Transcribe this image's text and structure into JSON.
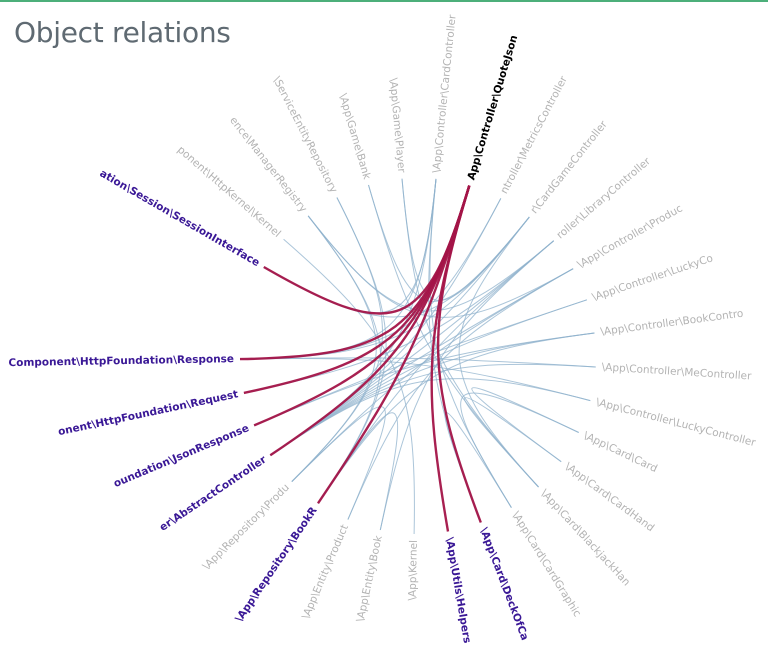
{
  "page": {
    "title": "Object relations"
  },
  "colors": {
    "muted": "#b3b3b3",
    "highlight": "#3a1896",
    "focus": "#000000",
    "link_muted": "#8fb1cc",
    "link_highlight": "#a31448",
    "frame_accent": "#4caf7a"
  },
  "focus_node": "\\App\\Controller\\QuoteJson",
  "nodes": [
    {
      "id": "session-interface",
      "label": "ation\\Session\\SessionInterface",
      "state": "highlight"
    },
    {
      "id": "http-kernel",
      "label": "ponent\\HttpKernel\\Kernel",
      "state": "muted"
    },
    {
      "id": "manager-registry",
      "label": "ence\\ManagerRegistry",
      "state": "muted"
    },
    {
      "id": "service-entity-repository",
      "label": "\\ServiceEntityRepository",
      "state": "muted"
    },
    {
      "id": "game-bank",
      "label": "\\App\\Game\\Bank",
      "state": "muted"
    },
    {
      "id": "game-player",
      "label": "\\App\\Game\\Player",
      "state": "muted"
    },
    {
      "id": "card-controller",
      "label": "\\App\\Controller\\CardController",
      "state": "muted"
    },
    {
      "id": "quote-json",
      "label": "App\\Controller\\QuoteJson",
      "state": "focus"
    },
    {
      "id": "metrics-controller",
      "label": "ntroller\\MetricsController",
      "state": "muted"
    },
    {
      "id": "card-game-controller",
      "label": "r\\CardGameController",
      "state": "muted"
    },
    {
      "id": "library-controller",
      "label": "roller\\LibraryController",
      "state": "muted"
    },
    {
      "id": "product-controller",
      "label": "\\App\\Controller\\Produc",
      "state": "muted"
    },
    {
      "id": "lucky-co",
      "label": "\\App\\Controller\\LuckyCo",
      "state": "muted"
    },
    {
      "id": "book-controller",
      "label": "\\App\\Controller\\BookContro",
      "state": "muted"
    },
    {
      "id": "me-controller",
      "label": "\\App\\Controller\\MeController",
      "state": "muted"
    },
    {
      "id": "lucky-controller",
      "label": "\\App\\Controller\\LuckyController",
      "state": "muted"
    },
    {
      "id": "card-card",
      "label": "\\App\\Card\\Card",
      "state": "muted"
    },
    {
      "id": "card-hand",
      "label": "\\App\\Card\\CardHand",
      "state": "muted"
    },
    {
      "id": "blackjack-hand",
      "label": "\\App\\Card\\BlackjackHan",
      "state": "muted"
    },
    {
      "id": "card-graphic",
      "label": "\\App\\Card\\CardGraphic",
      "state": "muted"
    },
    {
      "id": "deck-of-cards",
      "label": "\\App\\Card\\DeckOfCa",
      "state": "highlight"
    },
    {
      "id": "utils-helpers",
      "label": "\\App\\Utils\\Helpers",
      "state": "highlight"
    },
    {
      "id": "kernel",
      "label": "\\App\\Kernel",
      "state": "muted"
    },
    {
      "id": "entity-book",
      "label": "\\App\\Entity\\Book",
      "state": "muted"
    },
    {
      "id": "entity-product",
      "label": "\\App\\Entity\\Product",
      "state": "muted"
    },
    {
      "id": "repo-book",
      "label": "\\App\\Repository\\BookR",
      "state": "highlight"
    },
    {
      "id": "repo-product",
      "label": "\\App\\Repository\\Produ",
      "state": "muted"
    },
    {
      "id": "abstract-controller",
      "label": "er\\AbstractController",
      "state": "highlight"
    },
    {
      "id": "json-response",
      "label": "oundation\\JsonResponse",
      "state": "highlight"
    },
    {
      "id": "http-request",
      "label": "onent\\HttpFoundation\\Request",
      "state": "highlight"
    },
    {
      "id": "http-response",
      "label": "Component\\HttpFoundation\\Response",
      "state": "highlight"
    }
  ],
  "links": [
    {
      "source": "quote-json",
      "target": "session-interface",
      "weight": 2
    },
    {
      "source": "quote-json",
      "target": "http-response",
      "weight": 2
    },
    {
      "source": "quote-json",
      "target": "http-request",
      "weight": 2
    },
    {
      "source": "quote-json",
      "target": "json-response",
      "weight": 2
    },
    {
      "source": "quote-json",
      "target": "abstract-controller",
      "weight": 2
    },
    {
      "source": "quote-json",
      "target": "repo-book",
      "weight": 2
    },
    {
      "source": "quote-json",
      "target": "utils-helpers",
      "weight": 2
    },
    {
      "source": "quote-json",
      "target": "deck-of-cards",
      "weight": 2
    },
    {
      "source": "card-controller",
      "target": "abstract-controller",
      "weight": 1
    },
    {
      "source": "card-controller",
      "target": "session-interface",
      "weight": 1
    },
    {
      "source": "card-controller",
      "target": "http-response",
      "weight": 1
    },
    {
      "source": "card-controller",
      "target": "deck-of-cards",
      "weight": 1
    },
    {
      "source": "card-controller",
      "target": "card-graphic",
      "weight": 1
    },
    {
      "source": "metrics-controller",
      "target": "abstract-controller",
      "weight": 1
    },
    {
      "source": "metrics-controller",
      "target": "http-response",
      "weight": 1
    },
    {
      "source": "card-game-controller",
      "target": "abstract-controller",
      "weight": 1
    },
    {
      "source": "card-game-controller",
      "target": "http-response",
      "weight": 1
    },
    {
      "source": "card-game-controller",
      "target": "session-interface",
      "weight": 1
    },
    {
      "source": "card-game-controller",
      "target": "game-bank",
      "weight": 1
    },
    {
      "source": "card-game-controller",
      "target": "game-player",
      "weight": 1
    },
    {
      "source": "card-game-controller",
      "target": "blackjack-hand",
      "weight": 1
    },
    {
      "source": "library-controller",
      "target": "abstract-controller",
      "weight": 1
    },
    {
      "source": "library-controller",
      "target": "http-request",
      "weight": 1
    },
    {
      "source": "library-controller",
      "target": "manager-registry",
      "weight": 1
    },
    {
      "source": "library-controller",
      "target": "entity-book",
      "weight": 1
    },
    {
      "source": "library-controller",
      "target": "repo-book",
      "weight": 1
    },
    {
      "source": "product-controller",
      "target": "abstract-controller",
      "weight": 1
    },
    {
      "source": "product-controller",
      "target": "manager-registry",
      "weight": 1
    },
    {
      "source": "product-controller",
      "target": "entity-product",
      "weight": 1
    },
    {
      "source": "product-controller",
      "target": "repo-product",
      "weight": 1
    },
    {
      "source": "lucky-co",
      "target": "json-response",
      "weight": 1
    },
    {
      "source": "lucky-co",
      "target": "abstract-controller",
      "weight": 1
    },
    {
      "source": "book-controller",
      "target": "abstract-controller",
      "weight": 1
    },
    {
      "source": "book-controller",
      "target": "repo-book",
      "weight": 1
    },
    {
      "source": "book-controller",
      "target": "json-response",
      "weight": 1
    },
    {
      "source": "me-controller",
      "target": "abstract-controller",
      "weight": 1
    },
    {
      "source": "me-controller",
      "target": "http-response",
      "weight": 1
    },
    {
      "source": "lucky-controller",
      "target": "abstract-controller",
      "weight": 1
    },
    {
      "source": "lucky-controller",
      "target": "http-response",
      "weight": 1
    },
    {
      "source": "game-bank",
      "target": "blackjack-hand",
      "weight": 1
    },
    {
      "source": "game-player",
      "target": "blackjack-hand",
      "weight": 1
    },
    {
      "source": "blackjack-hand",
      "target": "card-hand",
      "weight": 1
    },
    {
      "source": "card-hand",
      "target": "card-card",
      "weight": 1
    },
    {
      "source": "card-graphic",
      "target": "card-card",
      "weight": 1
    },
    {
      "source": "deck-of-cards",
      "target": "card-graphic",
      "weight": 1
    },
    {
      "source": "repo-book",
      "target": "service-entity-repository",
      "weight": 1
    },
    {
      "source": "repo-book",
      "target": "manager-registry",
      "weight": 1
    },
    {
      "source": "repo-product",
      "target": "service-entity-repository",
      "weight": 1
    },
    {
      "source": "repo-product",
      "target": "manager-registry",
      "weight": 1
    },
    {
      "source": "kernel",
      "target": "http-kernel",
      "weight": 1
    },
    {
      "source": "entity-book",
      "target": "repo-book",
      "weight": 1
    },
    {
      "source": "entity-product",
      "target": "repo-product",
      "weight": 1
    }
  ]
}
